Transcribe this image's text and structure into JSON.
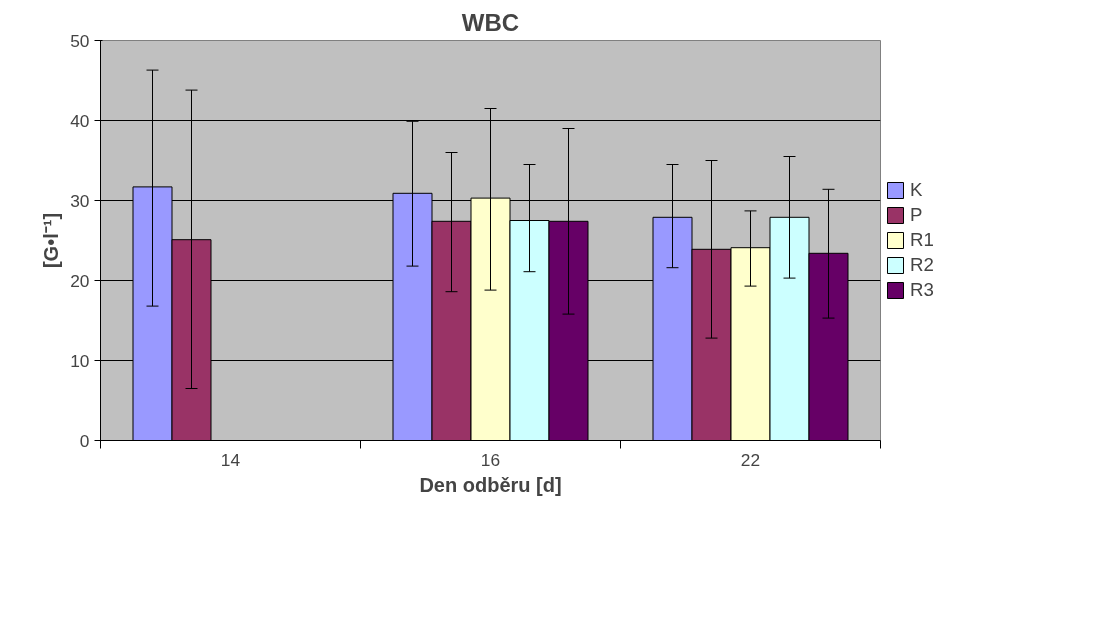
{
  "chart_data": {
    "type": "bar",
    "title": "WBC",
    "xlabel": "Den odběru [d]",
    "ylabel": "[G•l⁻¹]",
    "categories": [
      "14",
      "16",
      "22"
    ],
    "series": [
      {
        "name": "K",
        "color": "#9999ff",
        "values": [
          31.7,
          30.9,
          27.9
        ],
        "errors": [
          [
            16.8,
            46.3
          ],
          [
            21.8,
            39.9
          ],
          [
            21.6,
            34.5
          ]
        ]
      },
      {
        "name": "P",
        "color": "#993366",
        "values": [
          25.1,
          27.4,
          23.9
        ],
        "errors": [
          [
            6.5,
            43.8
          ],
          [
            18.6,
            36.0
          ],
          [
            12.8,
            35.0
          ]
        ]
      },
      {
        "name": "R1",
        "color": "#ffffcc",
        "values": [
          null,
          30.3,
          24.1
        ],
        "errors": [
          null,
          [
            18.8,
            41.5
          ],
          [
            19.3,
            28.7
          ]
        ]
      },
      {
        "name": "R2",
        "color": "#ccffff",
        "values": [
          null,
          27.5,
          27.9
        ],
        "errors": [
          null,
          [
            21.1,
            34.5
          ],
          [
            20.3,
            35.5
          ]
        ]
      },
      {
        "name": "R3",
        "color": "#660066",
        "values": [
          null,
          27.4,
          23.4
        ],
        "errors": [
          null,
          [
            15.8,
            39.0
          ],
          [
            15.3,
            31.4
          ]
        ]
      }
    ],
    "ylim": [
      0,
      50
    ],
    "yticks": [
      0,
      10,
      20,
      30,
      40,
      50
    ],
    "grid": "y",
    "legend": "right"
  }
}
